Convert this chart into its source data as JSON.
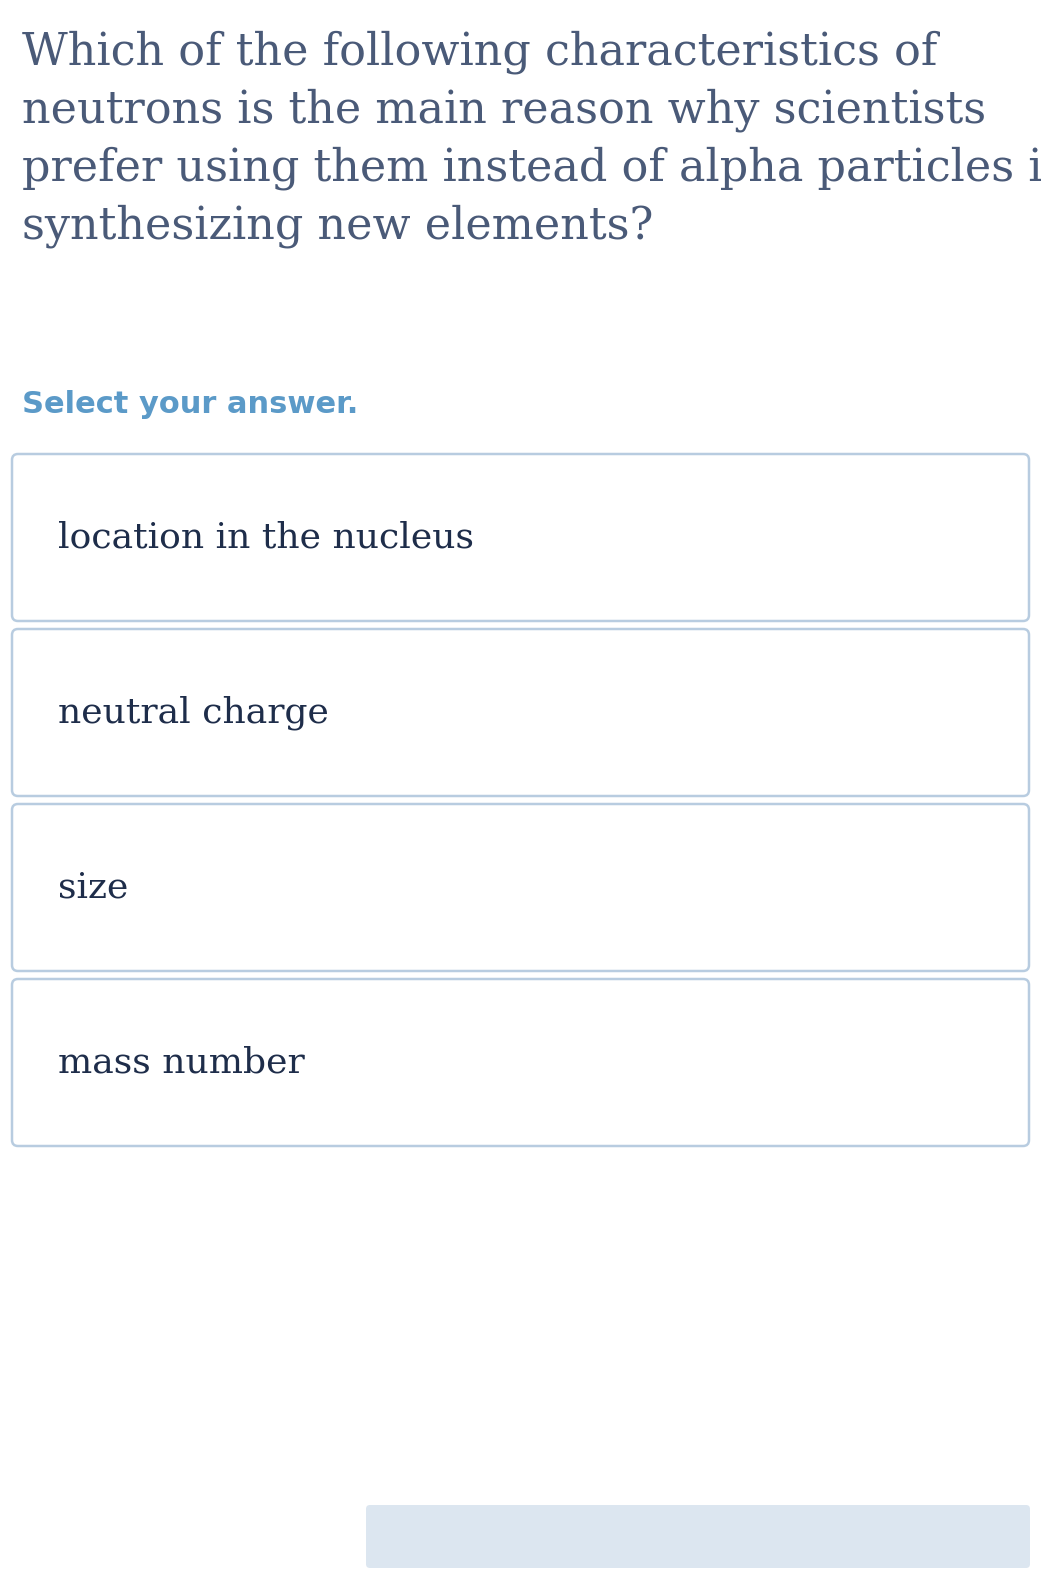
{
  "background_color": "#ffffff",
  "question_lines": [
    "Which of the following characteristics of",
    "neutrons is the main reason why scientists",
    "prefer using them instead of alpha particles in",
    "synthesizing new elements?"
  ],
  "question_color": "#4a5a78",
  "select_text": "Select your answer.",
  "select_color": "#5b9ac8",
  "options": [
    "location in the nucleus",
    "neutral charge",
    "size",
    "mass number"
  ],
  "option_text_color": "#1e2d4a",
  "option_bg_color": "#ffffff",
  "option_border_color": "#b8cce0",
  "option_text_fontsize": 26,
  "question_fontsize": 32,
  "select_fontsize": 22,
  "bottom_button_color": "#dce6f0",
  "fig_width": 10.41,
  "fig_height": 15.89,
  "dpi": 100
}
